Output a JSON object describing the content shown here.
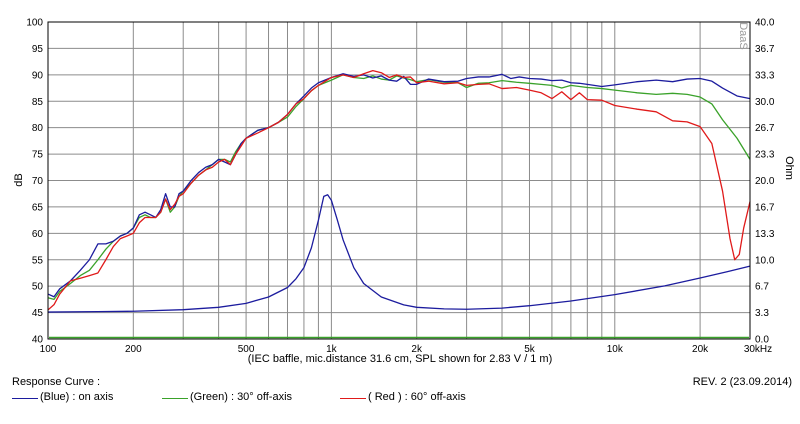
{
  "chart_data": {
    "type": "line",
    "x_scale": "log",
    "xlim": [
      100,
      30000
    ],
    "x_tick_labels": [
      {
        "value": 100,
        "label": "100"
      },
      {
        "value": 200,
        "label": "200"
      },
      {
        "value": 500,
        "label": "500"
      },
      {
        "value": 1000,
        "label": "1k"
      },
      {
        "value": 2000,
        "label": "2k"
      },
      {
        "value": 5000,
        "label": "5k"
      },
      {
        "value": 10000,
        "label": "10k"
      },
      {
        "value": 20000,
        "label": "20k"
      },
      {
        "value": 30000,
        "label": "30kHz"
      }
    ],
    "x_grid": [
      100,
      200,
      300,
      400,
      500,
      600,
      700,
      800,
      900,
      1000,
      2000,
      3000,
      4000,
      5000,
      6000,
      7000,
      8000,
      9000,
      10000,
      20000,
      30000
    ],
    "ylabel_left": "dB",
    "ylim_left": [
      40,
      100
    ],
    "y_ticks_left": [
      "40",
      "45",
      "50",
      "55",
      "60",
      "65",
      "70",
      "75",
      "80",
      "85",
      "90",
      "95",
      "100"
    ],
    "ylabel_right": "Ohm",
    "ylim_right": [
      0,
      40
    ],
    "y_ticks_right": [
      "0.0",
      "3.3",
      "6.7",
      "10.0",
      "13.3",
      "16.7",
      "20.0",
      "23.3",
      "26.7",
      "30.0",
      "33.3",
      "36.7",
      "40.0"
    ],
    "grid": true,
    "xlabel": "(IEC baffle, mic.distance 31.6 cm, SPL shown for 2.83 V / 1 m)",
    "watermark": "DaaS",
    "series": [
      {
        "name": "(Blue) : on axis",
        "axis": "left",
        "color": "#1c1c9e",
        "points": [
          [
            100,
            48.5
          ],
          [
            105,
            48
          ],
          [
            110,
            49.5
          ],
          [
            120,
            51
          ],
          [
            130,
            53
          ],
          [
            140,
            55
          ],
          [
            150,
            58
          ],
          [
            160,
            58
          ],
          [
            170,
            58.5
          ],
          [
            180,
            59.5
          ],
          [
            190,
            60
          ],
          [
            200,
            61
          ],
          [
            210,
            63.5
          ],
          [
            220,
            64
          ],
          [
            230,
            63.5
          ],
          [
            240,
            63
          ],
          [
            250,
            64.5
          ],
          [
            260,
            67.5
          ],
          [
            270,
            65
          ],
          [
            280,
            65
          ],
          [
            290,
            67.5
          ],
          [
            300,
            68
          ],
          [
            320,
            70
          ],
          [
            340,
            71.5
          ],
          [
            360,
            72.5
          ],
          [
            380,
            73
          ],
          [
            400,
            74
          ],
          [
            420,
            73.5
          ],
          [
            440,
            73
          ],
          [
            460,
            75
          ],
          [
            480,
            77
          ],
          [
            500,
            78
          ],
          [
            550,
            79.5
          ],
          [
            600,
            80
          ],
          [
            650,
            81
          ],
          [
            700,
            82.5
          ],
          [
            750,
            84.5
          ],
          [
            800,
            86
          ],
          [
            850,
            87.5
          ],
          [
            900,
            88.5
          ],
          [
            1000,
            89.5
          ],
          [
            1100,
            90.2
          ],
          [
            1200,
            89.7
          ],
          [
            1300,
            90
          ],
          [
            1400,
            89.4
          ],
          [
            1500,
            89.8
          ],
          [
            1600,
            89
          ],
          [
            1700,
            88.8
          ],
          [
            1800,
            89.7
          ],
          [
            1900,
            88.2
          ],
          [
            2000,
            88.2
          ],
          [
            2200,
            89.2
          ],
          [
            2500,
            88.7
          ],
          [
            2800,
            88.8
          ],
          [
            3000,
            89.3
          ],
          [
            3300,
            89.6
          ],
          [
            3600,
            89.6
          ],
          [
            4000,
            90.1
          ],
          [
            4300,
            89.3
          ],
          [
            4600,
            89.6
          ],
          [
            5000,
            89.3
          ],
          [
            5500,
            89.2
          ],
          [
            6000,
            88.9
          ],
          [
            6500,
            89
          ],
          [
            7000,
            88.5
          ],
          [
            7500,
            88.4
          ],
          [
            8000,
            88.2
          ],
          [
            9000,
            87.8
          ],
          [
            10000,
            88.1
          ],
          [
            12000,
            88.7
          ],
          [
            14000,
            89
          ],
          [
            16000,
            88.7
          ],
          [
            18000,
            89.2
          ],
          [
            20000,
            89.3
          ],
          [
            22000,
            88.8
          ],
          [
            24000,
            87.5
          ],
          [
            27000,
            86
          ],
          [
            30000,
            85.5
          ]
        ]
      },
      {
        "name": "(Green) : 30° off-axis",
        "axis": "left",
        "color": "#3aa22a",
        "points": [
          [
            100,
            47.8
          ],
          [
            105,
            47.5
          ],
          [
            110,
            49
          ],
          [
            120,
            50.5
          ],
          [
            130,
            52
          ],
          [
            140,
            53
          ],
          [
            150,
            55
          ],
          [
            160,
            57
          ],
          [
            170,
            58.5
          ],
          [
            180,
            59.5
          ],
          [
            190,
            60
          ],
          [
            200,
            61
          ],
          [
            210,
            63
          ],
          [
            220,
            63.5
          ],
          [
            230,
            63
          ],
          [
            240,
            63
          ],
          [
            250,
            64
          ],
          [
            260,
            66.5
          ],
          [
            270,
            64
          ],
          [
            280,
            65
          ],
          [
            290,
            67
          ],
          [
            300,
            68
          ],
          [
            320,
            69.5
          ],
          [
            340,
            71
          ],
          [
            360,
            72
          ],
          [
            380,
            73
          ],
          [
            400,
            74
          ],
          [
            420,
            74
          ],
          [
            440,
            73.5
          ],
          [
            460,
            75.5
          ],
          [
            480,
            77
          ],
          [
            500,
            78
          ],
          [
            550,
            79.5
          ],
          [
            600,
            80
          ],
          [
            650,
            81
          ],
          [
            700,
            82
          ],
          [
            750,
            84
          ],
          [
            800,
            85.5
          ],
          [
            850,
            87
          ],
          [
            900,
            88
          ],
          [
            1000,
            89
          ],
          [
            1100,
            90
          ],
          [
            1200,
            89.5
          ],
          [
            1300,
            89.3
          ],
          [
            1400,
            89.8
          ],
          [
            1500,
            89.2
          ],
          [
            1600,
            89
          ],
          [
            1700,
            89.8
          ],
          [
            1800,
            89.4
          ],
          [
            1900,
            89.1
          ],
          [
            2000,
            88.7
          ],
          [
            2200,
            89.1
          ],
          [
            2500,
            88.6
          ],
          [
            2800,
            88.5
          ],
          [
            3000,
            87.6
          ],
          [
            3300,
            88.4
          ],
          [
            3600,
            88.5
          ],
          [
            4000,
            88.9
          ],
          [
            4500,
            88.6
          ],
          [
            5000,
            88.4
          ],
          [
            5500,
            88.2
          ],
          [
            6000,
            88
          ],
          [
            6500,
            87.5
          ],
          [
            7000,
            88
          ],
          [
            8000,
            87.6
          ],
          [
            9000,
            87.4
          ],
          [
            10000,
            87.1
          ],
          [
            12000,
            86.6
          ],
          [
            14000,
            86.3
          ],
          [
            16000,
            86.5
          ],
          [
            18000,
            86.3
          ],
          [
            20000,
            85.8
          ],
          [
            22000,
            84.5
          ],
          [
            24000,
            81.5
          ],
          [
            27000,
            78
          ],
          [
            30000,
            74
          ]
        ]
      },
      {
        "name": "( Red ) : 60° off-axis",
        "axis": "left",
        "color": "#e01a1a",
        "points": [
          [
            100,
            45.5
          ],
          [
            105,
            46.5
          ],
          [
            110,
            48.5
          ],
          [
            120,
            51
          ],
          [
            130,
            51.5
          ],
          [
            140,
            52
          ],
          [
            150,
            52.5
          ],
          [
            160,
            55
          ],
          [
            170,
            57.5
          ],
          [
            180,
            59
          ],
          [
            190,
            59.5
          ],
          [
            200,
            60
          ],
          [
            210,
            62
          ],
          [
            220,
            63
          ],
          [
            230,
            63
          ],
          [
            240,
            63
          ],
          [
            250,
            64
          ],
          [
            260,
            66.5
          ],
          [
            270,
            64.5
          ],
          [
            280,
            65.5
          ],
          [
            290,
            67
          ],
          [
            300,
            67.5
          ],
          [
            320,
            69.5
          ],
          [
            340,
            71
          ],
          [
            360,
            72
          ],
          [
            380,
            72.5
          ],
          [
            400,
            73.5
          ],
          [
            420,
            74
          ],
          [
            440,
            73
          ],
          [
            460,
            75
          ],
          [
            480,
            76.5
          ],
          [
            500,
            78
          ],
          [
            550,
            79
          ],
          [
            600,
            80
          ],
          [
            650,
            81
          ],
          [
            700,
            82.5
          ],
          [
            750,
            84.5
          ],
          [
            800,
            85.5
          ],
          [
            850,
            87
          ],
          [
            900,
            88
          ],
          [
            1000,
            89.5
          ],
          [
            1100,
            90
          ],
          [
            1200,
            89.5
          ],
          [
            1300,
            90.2
          ],
          [
            1400,
            90.8
          ],
          [
            1500,
            90.4
          ],
          [
            1600,
            89.5
          ],
          [
            1700,
            90
          ],
          [
            1800,
            89.5
          ],
          [
            1900,
            89.6
          ],
          [
            2000,
            88.5
          ],
          [
            2200,
            88.8
          ],
          [
            2500,
            88.3
          ],
          [
            2800,
            88.5
          ],
          [
            3000,
            88
          ],
          [
            3300,
            88.2
          ],
          [
            3600,
            88.3
          ],
          [
            4000,
            87.4
          ],
          [
            4500,
            87.6
          ],
          [
            5000,
            87.1
          ],
          [
            5500,
            86.6
          ],
          [
            6000,
            85.5
          ],
          [
            6500,
            86.8
          ],
          [
            7000,
            85.3
          ],
          [
            7500,
            86.6
          ],
          [
            8000,
            85.3
          ],
          [
            9000,
            85.2
          ],
          [
            10000,
            84.2
          ],
          [
            12000,
            83.5
          ],
          [
            14000,
            83
          ],
          [
            16000,
            81.3
          ],
          [
            18000,
            81.1
          ],
          [
            20000,
            80.2
          ],
          [
            22000,
            77
          ],
          [
            24000,
            68
          ],
          [
            25500,
            59
          ],
          [
            26500,
            55
          ],
          [
            27500,
            56
          ],
          [
            28500,
            61
          ],
          [
            30000,
            66
          ]
        ]
      },
      {
        "name": "impedance",
        "axis": "right",
        "color": "#1c1c9e",
        "points": [
          [
            100,
            3.4
          ],
          [
            150,
            3.45
          ],
          [
            200,
            3.5
          ],
          [
            300,
            3.7
          ],
          [
            400,
            4
          ],
          [
            500,
            4.5
          ],
          [
            600,
            5.3
          ],
          [
            700,
            6.5
          ],
          [
            750,
            7.6
          ],
          [
            800,
            9
          ],
          [
            850,
            11.5
          ],
          [
            900,
            15
          ],
          [
            940,
            18
          ],
          [
            970,
            18.2
          ],
          [
            1000,
            17.5
          ],
          [
            1050,
            15
          ],
          [
            1100,
            12.5
          ],
          [
            1200,
            9
          ],
          [
            1300,
            7
          ],
          [
            1500,
            5.3
          ],
          [
            1800,
            4.3
          ],
          [
            2000,
            4
          ],
          [
            2500,
            3.8
          ],
          [
            3000,
            3.75
          ],
          [
            4000,
            3.9
          ],
          [
            5000,
            4.2
          ],
          [
            7000,
            4.8
          ],
          [
            10000,
            5.6
          ],
          [
            15000,
            6.7
          ],
          [
            20000,
            7.7
          ],
          [
            25000,
            8.5
          ],
          [
            30000,
            9.2
          ]
        ]
      }
    ],
    "legend_title": "Response Curve :",
    "revision": "REV. 2 (23.09.2014)",
    "green_baseline_color": "#3aa22a"
  }
}
